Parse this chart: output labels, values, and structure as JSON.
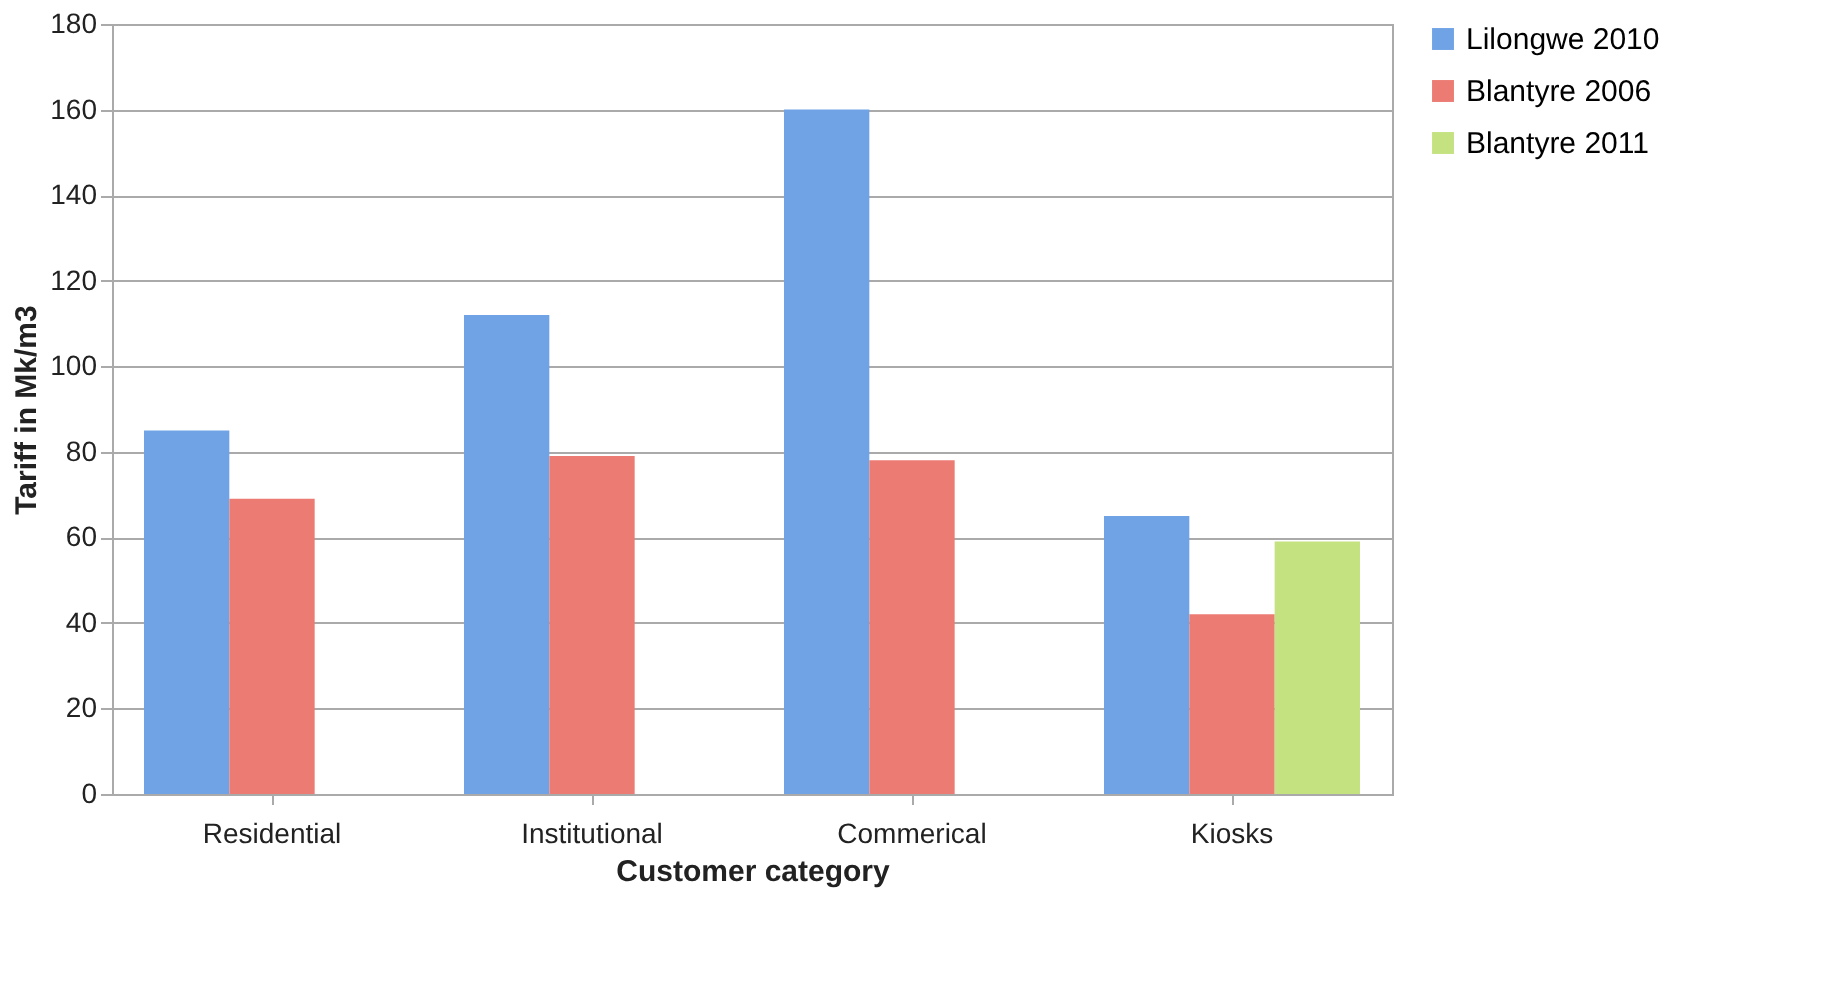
{
  "chart_data": {
    "type": "bar",
    "xlabel": "Customer category",
    "ylabel": "Tariff in Mk/m3",
    "categories": [
      "Residential",
      "Institutional",
      "Commerical",
      "Kiosks"
    ],
    "series": [
      {
        "name": "Lilongwe 2010",
        "color": "#6fa3e6",
        "values": [
          85,
          112,
          160,
          65
        ]
      },
      {
        "name": "Blantyre 2006",
        "color": "#ec7b73",
        "values": [
          69,
          79,
          78,
          42
        ]
      },
      {
        "name": "Blantyre 2011",
        "color": "#c4e27f",
        "values": [
          null,
          null,
          null,
          59
        ]
      }
    ],
    "ylim": [
      0,
      180
    ],
    "yticks": [
      0,
      20,
      40,
      60,
      80,
      100,
      120,
      140,
      160,
      180
    ],
    "grid": "y",
    "legend": "right"
  }
}
